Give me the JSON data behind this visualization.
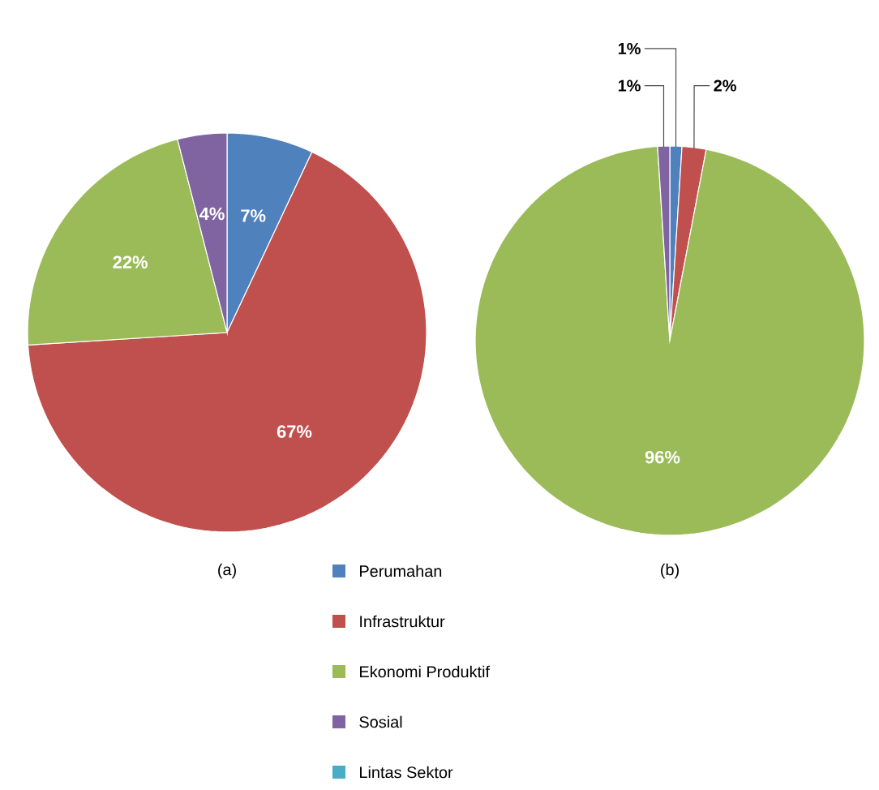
{
  "chart_data": [
    {
      "type": "pie",
      "title": "(a)",
      "categories": [
        "Perumahan",
        "Infrastruktur",
        "Ekonomi Produktif",
        "Sosial",
        "Lintas Sektor"
      ],
      "values": [
        7,
        67,
        22,
        4,
        0
      ],
      "value_labels": [
        "7%",
        "67%",
        "22%",
        "4%",
        null
      ],
      "colors": [
        "#4f81bd",
        "#c0504d",
        "#9bbb59",
        "#8064a2",
        "#4bacc6"
      ],
      "legend": "bottom"
    },
    {
      "type": "pie",
      "title": "(b)",
      "categories": [
        null,
        null,
        null,
        null,
        null
      ],
      "values": [
        1,
        2,
        96,
        1,
        0
      ],
      "value_labels": [
        "1%",
        "2%",
        "96%",
        "1%",
        null
      ],
      "colors": [
        "#4f81bd",
        "#c0504d",
        "#9bbb59",
        "#8064a2",
        "#4bacc6"
      ]
    }
  ]
}
